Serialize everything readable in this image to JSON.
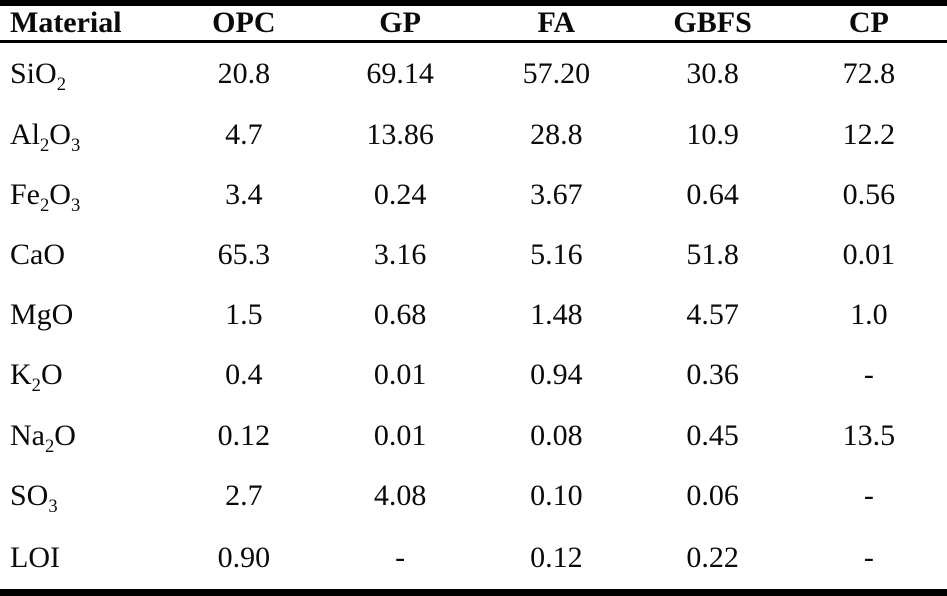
{
  "colors": {
    "background": "#ffffff",
    "text": "#0a0a0a",
    "rule": "#000000"
  },
  "table": {
    "headers": [
      "Material",
      "OPC",
      "GP",
      "FA",
      "GBFS",
      "CP"
    ],
    "rows": [
      {
        "material": [
          {
            "t": "SiO"
          },
          {
            "t": "2",
            "sub": true
          }
        ],
        "values": [
          "20.8",
          "69.14",
          "57.20",
          "30.8",
          "72.8"
        ]
      },
      {
        "material": [
          {
            "t": "Al"
          },
          {
            "t": "2",
            "sub": true
          },
          {
            "t": "O"
          },
          {
            "t": "3",
            "sub": true
          }
        ],
        "values": [
          "4.7",
          "13.86",
          "28.8",
          "10.9",
          "12.2"
        ]
      },
      {
        "material": [
          {
            "t": "Fe"
          },
          {
            "t": "2",
            "sub": true
          },
          {
            "t": "O"
          },
          {
            "t": "3",
            "sub": true
          }
        ],
        "values": [
          "3.4",
          "0.24",
          "3.67",
          "0.64",
          "0.56"
        ]
      },
      {
        "material": [
          {
            "t": "CaO"
          }
        ],
        "values": [
          "65.3",
          "3.16",
          "5.16",
          "51.8",
          "0.01"
        ]
      },
      {
        "material": [
          {
            "t": "MgO"
          }
        ],
        "values": [
          "1.5",
          "0.68",
          "1.48",
          "4.57",
          "1.0"
        ]
      },
      {
        "material": [
          {
            "t": "K"
          },
          {
            "t": "2",
            "sub": true
          },
          {
            "t": "O"
          }
        ],
        "values": [
          "0.4",
          "0.01",
          "0.94",
          "0.36",
          "-"
        ]
      },
      {
        "material": [
          {
            "t": "Na"
          },
          {
            "t": "2",
            "sub": true
          },
          {
            "t": "O"
          }
        ],
        "values": [
          "0.12",
          "0.01",
          "0.08",
          "0.45",
          "13.5"
        ]
      },
      {
        "material": [
          {
            "t": "SO"
          },
          {
            "t": "3",
            "sub": true
          }
        ],
        "values": [
          "2.7",
          "4.08",
          "0.10",
          "0.06",
          "-"
        ]
      },
      {
        "material": [
          {
            "t": "LOI"
          }
        ],
        "values": [
          "0.90",
          "-",
          "0.12",
          "0.22",
          "-"
        ]
      }
    ]
  },
  "chart_data": {
    "type": "table",
    "title": "",
    "columns": [
      "Material",
      "OPC",
      "GP",
      "FA",
      "GBFS",
      "CP"
    ],
    "rows": [
      [
        "SiO2",
        "20.8",
        "69.14",
        "57.20",
        "30.8",
        "72.8"
      ],
      [
        "Al2O3",
        "4.7",
        "13.86",
        "28.8",
        "10.9",
        "12.2"
      ],
      [
        "Fe2O3",
        "3.4",
        "0.24",
        "3.67",
        "0.64",
        "0.56"
      ],
      [
        "CaO",
        "65.3",
        "3.16",
        "5.16",
        "51.8",
        "0.01"
      ],
      [
        "MgO",
        "1.5",
        "0.68",
        "1.48",
        "4.57",
        "1.0"
      ],
      [
        "K2O",
        "0.4",
        "0.01",
        "0.94",
        "0.36",
        "-"
      ],
      [
        "Na2O",
        "0.12",
        "0.01",
        "0.08",
        "0.45",
        "13.5"
      ],
      [
        "SO3",
        "2.7",
        "4.08",
        "0.10",
        "0.06",
        "-"
      ],
      [
        "LOI",
        "0.90",
        "-",
        "0.12",
        "0.22",
        "-"
      ]
    ]
  }
}
